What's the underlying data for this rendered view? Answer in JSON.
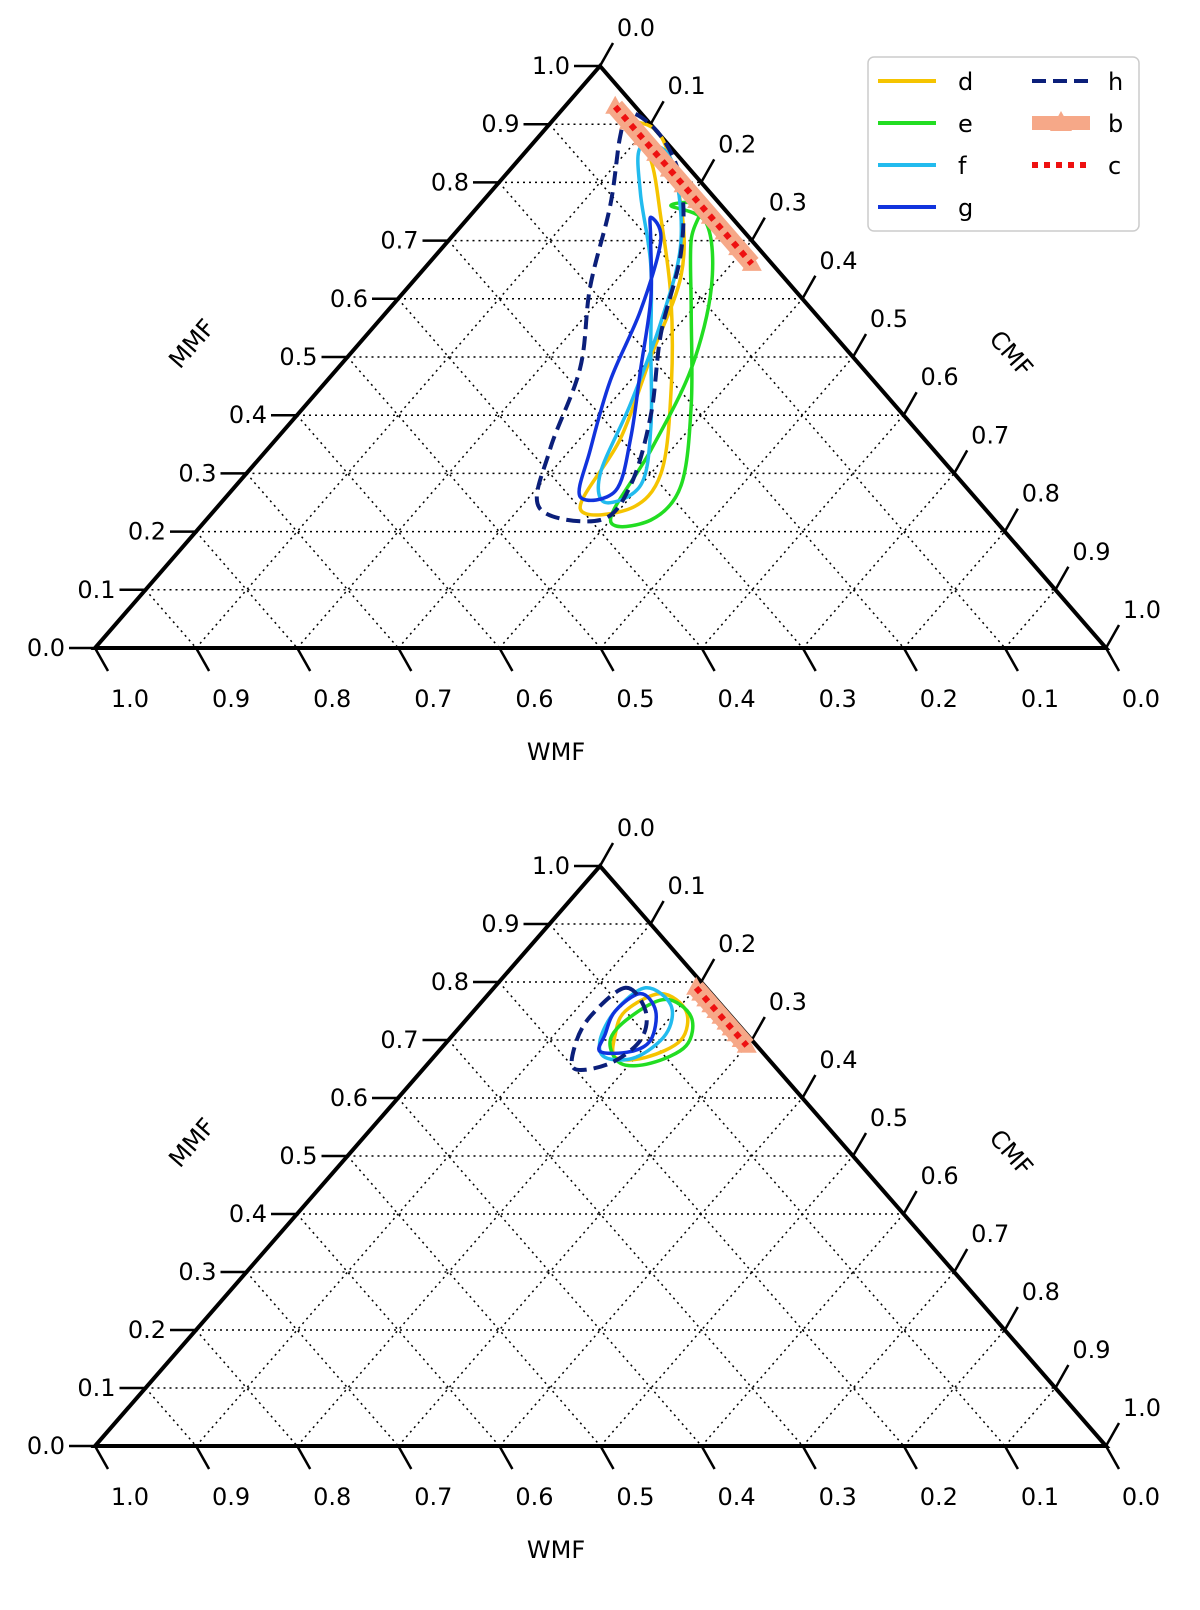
{
  "chart_data": [
    {
      "type": "ternary-contour",
      "axes": {
        "bottom": {
          "label": "WMF",
          "ticks": [
            "1.0",
            "0.9",
            "0.8",
            "0.7",
            "0.6",
            "0.5",
            "0.4",
            "0.3",
            "0.2",
            "0.1",
            "0.0"
          ]
        },
        "left": {
          "label": "MMF",
          "ticks": [
            "0.0",
            "0.1",
            "0.2",
            "0.3",
            "0.4",
            "0.5",
            "0.6",
            "0.7",
            "0.8",
            "0.9",
            "1.0"
          ]
        },
        "right": {
          "label": "CMF",
          "ticks": [
            "0.0",
            "0.1",
            "0.2",
            "0.3",
            "0.4",
            "0.5",
            "0.6",
            "0.7",
            "0.8",
            "0.9",
            "1.0"
          ]
        }
      },
      "ranges": {
        "WMF": [
          0,
          1
        ],
        "MMF": [
          0,
          1
        ],
        "CMF": [
          0,
          1
        ]
      },
      "grid": true,
      "legend": {
        "position": "top-right",
        "columns": 2
      },
      "series": [
        {
          "name": "d",
          "color": "#f5c400",
          "style": "solid",
          "points": [
            [
              0.9,
              0.08
            ],
            [
              0.88,
              0.12
            ],
            [
              0.76,
              0.2
            ],
            [
              0.64,
              0.26
            ],
            [
              0.5,
              0.3
            ],
            [
              0.36,
              0.34
            ],
            [
              0.24,
              0.36
            ],
            [
              0.24,
              0.41
            ],
            [
              0.3,
              0.41
            ],
            [
              0.44,
              0.35
            ],
            [
              0.6,
              0.27
            ],
            [
              0.74,
              0.19
            ],
            [
              0.84,
              0.13
            ]
          ]
        },
        {
          "name": "e",
          "color": "#22dd22",
          "style": "solid",
          "points": [
            [
              0.76,
              0.19
            ],
            [
              0.73,
              0.24
            ],
            [
              0.62,
              0.3
            ],
            [
              0.48,
              0.35
            ],
            [
              0.34,
              0.38
            ],
            [
              0.22,
              0.4
            ],
            [
              0.22,
              0.44
            ],
            [
              0.28,
              0.44
            ],
            [
              0.42,
              0.38
            ],
            [
              0.58,
              0.3
            ],
            [
              0.7,
              0.24
            ],
            [
              0.76,
              0.22
            ]
          ]
        },
        {
          "name": "f",
          "color": "#22bbee",
          "style": "solid",
          "points": [
            [
              0.86,
              0.11
            ],
            [
              0.84,
              0.15
            ],
            [
              0.7,
              0.23
            ],
            [
              0.56,
              0.28
            ],
            [
              0.42,
              0.32
            ],
            [
              0.3,
              0.35
            ],
            [
              0.25,
              0.38
            ],
            [
              0.28,
              0.4
            ],
            [
              0.38,
              0.36
            ],
            [
              0.52,
              0.29
            ],
            [
              0.66,
              0.22
            ],
            [
              0.78,
              0.15
            ]
          ]
        },
        {
          "name": "g",
          "color": "#1133dd",
          "style": "solid",
          "points": [
            [
              0.74,
              0.18
            ],
            [
              0.7,
              0.21
            ],
            [
              0.58,
              0.25
            ],
            [
              0.46,
              0.28
            ],
            [
              0.34,
              0.32
            ],
            [
              0.26,
              0.35
            ],
            [
              0.27,
              0.38
            ],
            [
              0.36,
              0.35
            ],
            [
              0.48,
              0.3
            ],
            [
              0.6,
              0.25
            ],
            [
              0.7,
              0.2
            ]
          ]
        },
        {
          "name": "h",
          "color": "#0b1f7a",
          "style": "dashed",
          "points": [
            [
              0.92,
              0.07
            ],
            [
              0.88,
              0.08
            ],
            [
              0.76,
              0.13
            ],
            [
              0.62,
              0.18
            ],
            [
              0.48,
              0.24
            ],
            [
              0.34,
              0.28
            ],
            [
              0.24,
              0.32
            ],
            [
              0.22,
              0.39
            ],
            [
              0.28,
              0.39
            ],
            [
              0.4,
              0.35
            ],
            [
              0.54,
              0.29
            ],
            [
              0.68,
              0.24
            ],
            [
              0.8,
              0.18
            ],
            [
              0.88,
              0.12
            ]
          ]
        },
        {
          "name": "b",
          "color": "#f6a888",
          "style": "thick-triangle-marker",
          "points": [
            [
              0.93,
              0.05
            ],
            [
              0.84,
              0.14
            ],
            [
              0.75,
              0.23
            ],
            [
              0.66,
              0.32
            ]
          ]
        },
        {
          "name": "c",
          "color": "#ee1111",
          "style": "dotted",
          "points": [
            [
              0.93,
              0.05
            ],
            [
              0.84,
              0.14
            ],
            [
              0.75,
              0.23
            ],
            [
              0.66,
              0.32
            ]
          ]
        }
      ]
    },
    {
      "type": "ternary-contour",
      "axes": {
        "bottom": {
          "label": "WMF",
          "ticks": [
            "1.0",
            "0.9",
            "0.8",
            "0.7",
            "0.6",
            "0.5",
            "0.4",
            "0.3",
            "0.2",
            "0.1",
            "0.0"
          ]
        },
        "left": {
          "label": "MMF",
          "ticks": [
            "0.0",
            "0.1",
            "0.2",
            "0.3",
            "0.4",
            "0.5",
            "0.6",
            "0.7",
            "0.8",
            "0.9",
            "1.0"
          ]
        },
        "right": {
          "label": "CMF",
          "ticks": [
            "0.0",
            "0.1",
            "0.2",
            "0.3",
            "0.4",
            "0.5",
            "0.6",
            "0.7",
            "0.8",
            "0.9",
            "1.0"
          ]
        }
      },
      "ranges": {
        "WMF": [
          0,
          1
        ],
        "MMF": [
          0,
          1
        ],
        "CMF": [
          0,
          1
        ]
      },
      "grid": true,
      "series": [
        {
          "name": "d",
          "color": "#f5c400",
          "style": "solid",
          "points": [
            [
              0.78,
              0.17
            ],
            [
              0.75,
              0.21
            ],
            [
              0.7,
              0.23
            ],
            [
              0.67,
              0.21
            ],
            [
              0.67,
              0.18
            ],
            [
              0.71,
              0.16
            ],
            [
              0.75,
              0.15
            ]
          ]
        },
        {
          "name": "e",
          "color": "#22dd22",
          "style": "solid",
          "points": [
            [
              0.77,
              0.18
            ],
            [
              0.74,
              0.22
            ],
            [
              0.69,
              0.24
            ],
            [
              0.66,
              0.22
            ],
            [
              0.66,
              0.19
            ],
            [
              0.7,
              0.16
            ],
            [
              0.74,
              0.16
            ]
          ]
        },
        {
          "name": "f",
          "color": "#22bbee",
          "style": "solid",
          "points": [
            [
              0.79,
              0.15
            ],
            [
              0.76,
              0.19
            ],
            [
              0.71,
              0.21
            ],
            [
              0.67,
              0.2
            ],
            [
              0.67,
              0.17
            ],
            [
              0.7,
              0.15
            ],
            [
              0.75,
              0.14
            ]
          ]
        },
        {
          "name": "g",
          "color": "#1133dd",
          "style": "solid",
          "points": [
            [
              0.78,
              0.15
            ],
            [
              0.75,
              0.18
            ],
            [
              0.7,
              0.2
            ],
            [
              0.68,
              0.19
            ],
            [
              0.68,
              0.16
            ],
            [
              0.71,
              0.15
            ],
            [
              0.75,
              0.14
            ]
          ]
        },
        {
          "name": "h",
          "color": "#0b1f7a",
          "style": "dashed",
          "points": [
            [
              0.79,
              0.13
            ],
            [
              0.75,
              0.17
            ],
            [
              0.7,
              0.19
            ],
            [
              0.66,
              0.18
            ],
            [
              0.65,
              0.15
            ],
            [
              0.69,
              0.13
            ],
            [
              0.74,
              0.12
            ]
          ]
        },
        {
          "name": "b",
          "color": "#f6a888",
          "style": "thick-triangle-marker",
          "points": [
            [
              0.79,
              0.2
            ],
            [
              0.73,
              0.26
            ],
            [
              0.69,
              0.3
            ]
          ]
        },
        {
          "name": "c",
          "color": "#ee1111",
          "style": "dotted",
          "points": [
            [
              0.79,
              0.2
            ],
            [
              0.73,
              0.26
            ],
            [
              0.69,
              0.3
            ]
          ]
        }
      ]
    }
  ]
}
